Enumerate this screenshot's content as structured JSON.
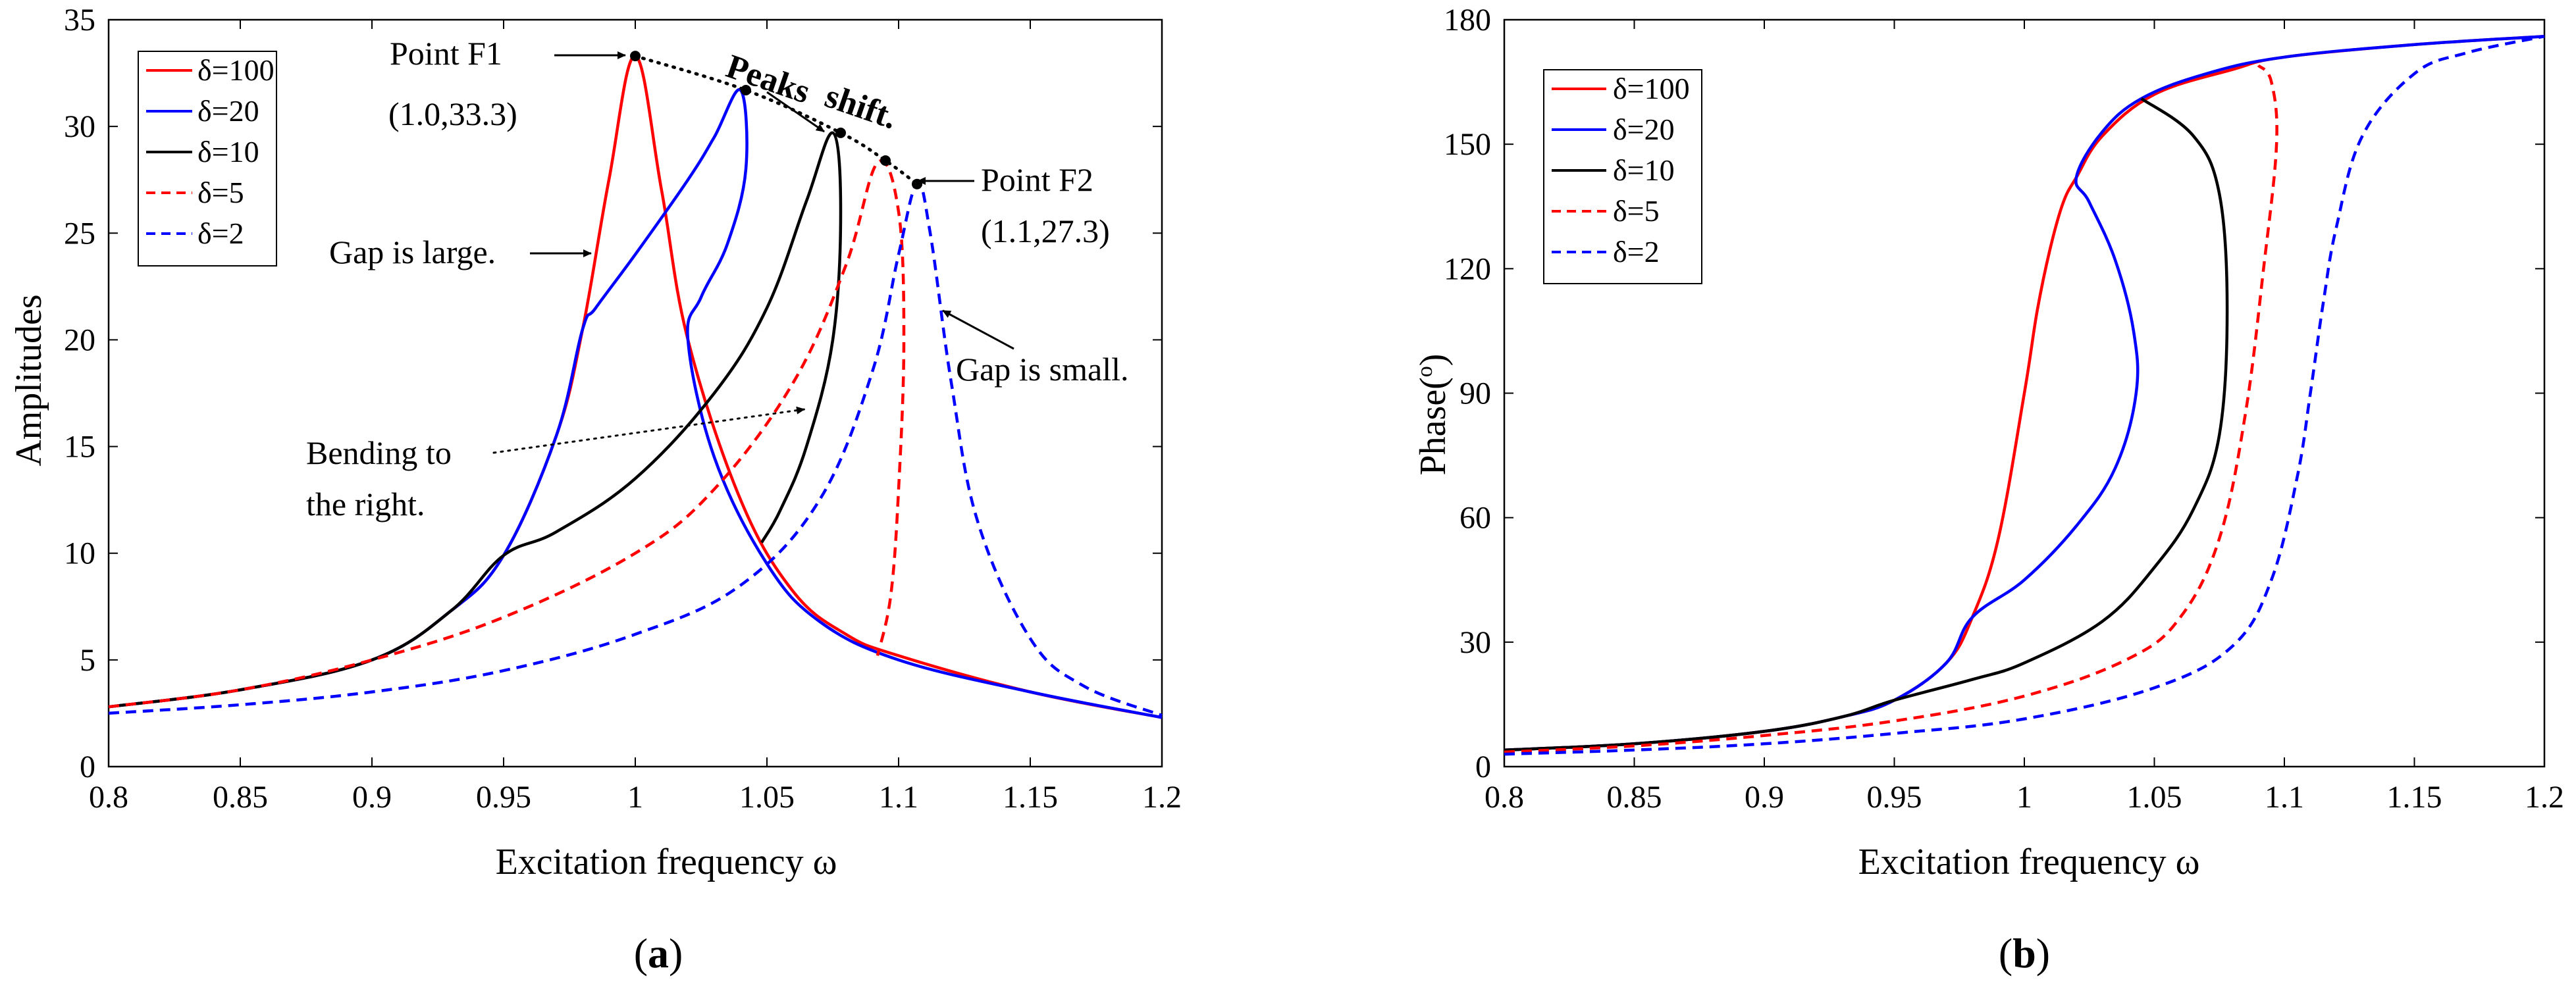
{
  "chart_data": [
    {
      "type": "line",
      "panel_label": "(a)",
      "panel_paren_open": "(",
      "panel_letter": "a",
      "panel_paren_close": ")",
      "xlabel": "Excitation frequency ω",
      "ylabel": "Amplitudes",
      "xlim": [
        0.8,
        1.2
      ],
      "ylim": [
        0,
        35
      ],
      "xticks": [
        "0.8",
        "0.85",
        "0.9",
        "0.95",
        "1",
        "1.05",
        "1.1",
        "1.15",
        "1.2"
      ],
      "yticks": [
        "0",
        "5",
        "10",
        "15",
        "20",
        "25",
        "30",
        "35"
      ],
      "legend_position": "top-left",
      "series": [
        {
          "name": "δ=100",
          "color": "#ff0000",
          "dash": "solid",
          "x": [
            0.8,
            0.85,
            0.9,
            0.93,
            0.95,
            0.97,
            0.98,
            0.99,
            1.0,
            1.01,
            1.02,
            1.04,
            1.06,
            1.08,
            1.1,
            1.15,
            1.2
          ],
          "y": [
            2.8,
            3.6,
            5.0,
            7.3,
            9.9,
            15.5,
            20.5,
            27.5,
            33.3,
            27.0,
            20.0,
            12.5,
            8.2,
            6.2,
            5.2,
            3.5,
            2.3
          ]
        },
        {
          "name": "δ=20",
          "color": "#0000ff",
          "dash": "solid",
          "x": [
            0.8,
            0.85,
            0.9,
            0.93,
            0.95,
            0.97,
            0.98,
            0.985,
            1.0,
            1.02,
            1.03,
            1.04,
            1.042,
            1.035,
            1.025,
            1.02,
            1.03,
            1.05,
            1.07,
            1.1,
            1.15,
            1.2
          ],
          "y": [
            2.8,
            3.6,
            5.0,
            7.3,
            9.9,
            15.5,
            20.5,
            21.5,
            24.0,
            27.5,
            29.5,
            31.7,
            28.0,
            24.5,
            22.0,
            20.0,
            14.5,
            9.5,
            6.8,
            5.0,
            3.5,
            2.3
          ]
        },
        {
          "name": "δ=10",
          "color": "#000000",
          "dash": "solid",
          "x": [
            0.8,
            0.85,
            0.9,
            0.93,
            0.95,
            0.97,
            1.0,
            1.03,
            1.05,
            1.065,
            1.075,
            1.078,
            1.075,
            1.065,
            1.055,
            1.048
          ],
          "y": [
            2.8,
            3.6,
            5.0,
            7.3,
            9.9,
            11.0,
            13.5,
            17.5,
            21.5,
            26.5,
            29.7,
            26.0,
            20.0,
            15.0,
            12.0,
            10.5
          ]
        },
        {
          "name": "δ=5",
          "color": "#ff0000",
          "dash": "dashed",
          "x": [
            0.8,
            0.85,
            0.9,
            0.95,
            1.0,
            1.03,
            1.06,
            1.08,
            1.092,
            1.1,
            1.102,
            1.1,
            1.097,
            1.092
          ],
          "y": [
            2.8,
            3.6,
            5.0,
            7.0,
            10.0,
            13.0,
            18.0,
            23.5,
            28.3,
            26.0,
            20.0,
            13.0,
            8.0,
            5.2
          ]
        },
        {
          "name": "δ=2",
          "color": "#0000ff",
          "dash": "dashed",
          "x": [
            0.8,
            0.85,
            0.9,
            0.95,
            1.0,
            1.04,
            1.07,
            1.09,
            1.1,
            1.107,
            1.112,
            1.12,
            1.13,
            1.15,
            1.17,
            1.2
          ],
          "y": [
            2.5,
            2.9,
            3.5,
            4.5,
            6.2,
            8.5,
            12.5,
            18.5,
            24.0,
            27.3,
            25.0,
            18.0,
            11.5,
            6.0,
            3.8,
            2.4
          ]
        }
      ],
      "annotations": {
        "point_f1": "Point F1",
        "point_f1_coord": "(1.0,33.3)",
        "point_f2": "Point F2",
        "point_f2_coord": "(1.1,27.3)",
        "peaks": "Peaks",
        "shift": "shift.",
        "gap_large": "Gap is large.",
        "gap_small": "Gap is small.",
        "bending_1": "Bending to",
        "bending_2": "the right."
      },
      "peak_points": [
        [
          1.0,
          33.3
        ],
        [
          1.042,
          31.7
        ],
        [
          1.078,
          29.7
        ],
        [
          1.095,
          28.4
        ],
        [
          1.107,
          27.3
        ]
      ]
    },
    {
      "type": "line",
      "panel_label": "(b)",
      "panel_paren_open": "(",
      "panel_letter": "b",
      "panel_paren_close": ")",
      "xlabel": "Excitation frequency ω",
      "ylabel": "Phase(°)",
      "ylabel_main": "Phase(",
      "ylabel_sup": "o",
      "ylabel_close": ")",
      "xlim": [
        0.8,
        1.2
      ],
      "ylim": [
        0,
        180
      ],
      "xticks": [
        "0.8",
        "0.85",
        "0.9",
        "0.95",
        "1",
        "1.05",
        "1.1",
        "1.15",
        "1.2"
      ],
      "yticks": [
        "0",
        "30",
        "60",
        "90",
        "120",
        "150",
        "180"
      ],
      "legend_position": "top-left",
      "series": [
        {
          "name": "δ=100",
          "color": "#ff0000",
          "dash": "solid",
          "x": [
            0.8,
            0.85,
            0.9,
            0.93,
            0.95,
            0.97,
            0.98,
            0.99,
            1.0,
            1.005,
            1.01,
            1.015,
            1.02,
            1.03,
            1.05,
            1.08,
            1.1,
            1.15,
            1.2
          ],
          "y": [
            4,
            5.5,
            8.5,
            12,
            16,
            25,
            36,
            55,
            90,
            110,
            125,
            136,
            142,
            152,
            162,
            168,
            171,
            174,
            176
          ]
        },
        {
          "name": "δ=20",
          "color": "#0000ff",
          "dash": "solid",
          "x": [
            0.8,
            0.85,
            0.9,
            0.93,
            0.95,
            0.97,
            0.98,
            1.0,
            1.02,
            1.035,
            1.043,
            1.042,
            1.035,
            1.025,
            1.02,
            1.03,
            1.045,
            1.07,
            1.1,
            1.15,
            1.2
          ],
          "y": [
            4,
            5.5,
            8.5,
            12,
            16,
            25,
            36,
            45,
            58,
            72,
            90,
            105,
            122,
            136,
            142,
            153,
            161,
            167,
            171,
            174,
            176
          ]
        },
        {
          "name": "δ=10",
          "color": "#000000",
          "dash": "solid",
          "x": [
            0.8,
            0.85,
            0.9,
            0.93,
            0.95,
            0.98,
            1.0,
            1.03,
            1.05,
            1.065,
            1.075,
            1.078,
            1.075,
            1.065,
            1.045
          ],
          "y": [
            4,
            5.5,
            8.5,
            12,
            16,
            21,
            25,
            35,
            48,
            62,
            80,
            110,
            138,
            152,
            161
          ]
        },
        {
          "name": "δ=5",
          "color": "#ff0000",
          "dash": "dashed",
          "x": [
            0.8,
            0.85,
            0.9,
            0.95,
            1.0,
            1.04,
            1.06,
            1.075,
            1.085,
            1.092,
            1.097,
            1.095,
            1.09
          ],
          "y": [
            3.5,
            5,
            7.5,
            11,
            17,
            26,
            36,
            55,
            85,
            120,
            150,
            165,
            169
          ]
        },
        {
          "name": "δ=2",
          "color": "#0000ff",
          "dash": "dashed",
          "x": [
            0.8,
            0.85,
            0.9,
            0.95,
            1.0,
            1.05,
            1.08,
            1.095,
            1.105,
            1.11,
            1.115,
            1.12,
            1.13,
            1.15,
            1.17,
            1.2
          ],
          "y": [
            3,
            4,
            5.5,
            8,
            11.5,
            19,
            29,
            45,
            70,
            90,
            112,
            130,
            152,
            167,
            172,
            176
          ]
        }
      ]
    }
  ]
}
